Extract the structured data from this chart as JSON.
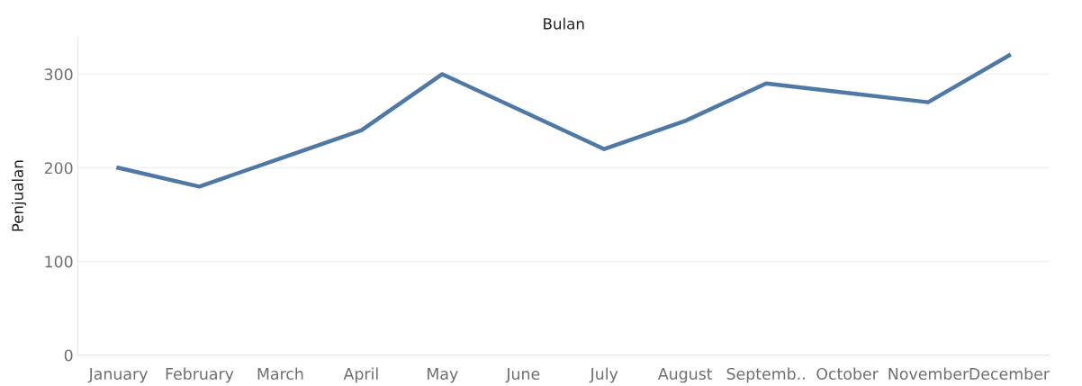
{
  "chart_data": {
    "type": "line",
    "title": "Bulan",
    "ylabel": "Penjualan",
    "categories": [
      "January",
      "February",
      "March",
      "April",
      "May",
      "June",
      "July",
      "August",
      "Septemb..",
      "October",
      "November",
      "December"
    ],
    "series": [
      {
        "color": "#4e79a7",
        "values": [
          200,
          180,
          210,
          240,
          300,
          260,
          220,
          250,
          290,
          280,
          270,
          320
        ]
      }
    ],
    "ylim": [
      0,
      340
    ],
    "yticks": [
      0,
      100,
      200,
      300
    ],
    "grid": "y",
    "marker": "none",
    "line_style": "solid"
  }
}
